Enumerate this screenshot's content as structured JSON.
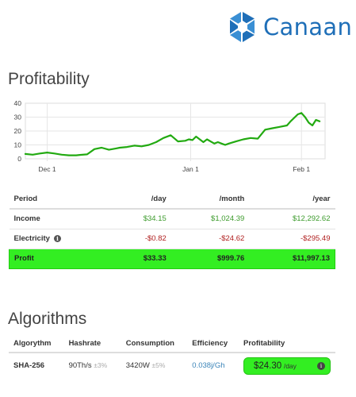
{
  "brand": {
    "name": "Canaan",
    "color": "#1f6fb8"
  },
  "profitability": {
    "title": "Profitability",
    "columns": [
      "Period",
      "/day",
      "/month",
      "/year"
    ],
    "rows": [
      {
        "label": "Income",
        "day": "$34.15",
        "month": "$1,024.39",
        "year": "$12,292.62",
        "info": false
      },
      {
        "label": "Electricity",
        "day": "-$0.82",
        "month": "-$24.62",
        "year": "-$295.49",
        "info": true
      },
      {
        "label": "Profit",
        "day": "$33.33",
        "month": "$999.76",
        "year": "$11,997.13",
        "info": false
      }
    ],
    "info_icon": "i"
  },
  "chart_data": {
    "type": "line",
    "x_tick_labels": [
      "Dec 1",
      "Jan 1",
      "Feb 1"
    ],
    "y_tick_labels": [
      "0",
      "10",
      "20",
      "30",
      "40"
    ],
    "ylim": [
      0,
      40
    ],
    "grid": true,
    "line_color": "#22aa11",
    "x": [
      0,
      4,
      8,
      12,
      16,
      20,
      24,
      28,
      30,
      34,
      38,
      42,
      46,
      50,
      52,
      56,
      60,
      64,
      68,
      72,
      76,
      80,
      84,
      88,
      90,
      92,
      94,
      96,
      98,
      100,
      104,
      106,
      108,
      110,
      112,
      116,
      120,
      124,
      128,
      132,
      136,
      140,
      144,
      146,
      150,
      152,
      154,
      156,
      158,
      160,
      162
    ],
    "values": [
      3.5,
      3,
      3.8,
      4.5,
      3.8,
      3,
      2.5,
      2.5,
      2.8,
      3.2,
      7,
      8,
      6.5,
      7.5,
      8,
      8.5,
      9.5,
      9,
      10,
      12,
      15,
      17,
      12.5,
      13,
      14,
      13.5,
      16,
      14,
      12,
      14,
      11,
      12,
      11,
      10,
      11,
      12.5,
      14,
      15,
      14.5,
      21,
      22,
      23,
      24,
      27,
      32,
      33,
      30,
      26,
      24,
      28,
      27
    ]
  },
  "algorithms": {
    "title": "Algorithms",
    "columns": [
      "Algorythm",
      "Hashrate",
      "Consumption",
      "Efficiency",
      "Profitability"
    ],
    "rows": [
      {
        "name": "SHA-256",
        "hashrate": "90Th/s",
        "hashrate_tol": "±3%",
        "consumption": "3420W",
        "consumption_tol": "±5%",
        "efficiency": "0.038j/Gh",
        "profit_value": "$24.30",
        "profit_unit": "/day"
      }
    ]
  },
  "colors": {
    "highlight": "#33ee22",
    "positive": "#3c9b2c",
    "negative": "#b02020",
    "efficiency": "#3a84b8"
  }
}
